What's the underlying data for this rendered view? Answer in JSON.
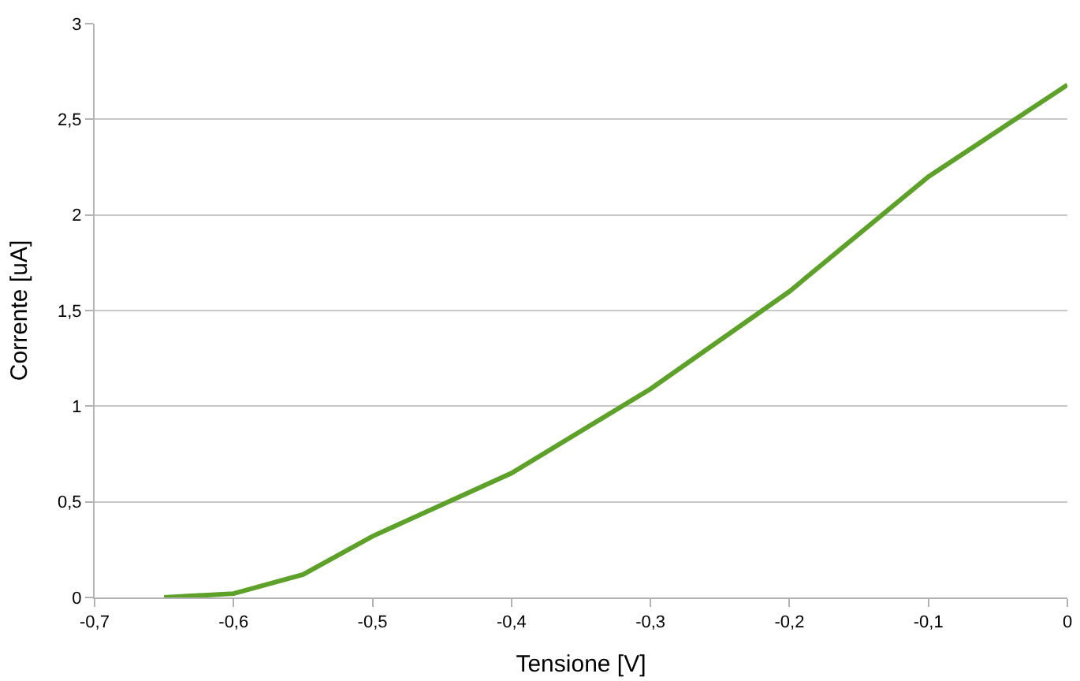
{
  "chart_data": {
    "type": "line",
    "xlabel": "Tensione [V]",
    "ylabel": "Corrente [uA]",
    "x": [
      -0.65,
      -0.6,
      -0.55,
      -0.5,
      -0.4,
      -0.3,
      -0.2,
      -0.1,
      0
    ],
    "series": [
      {
        "color": "#5ea12a",
        "values": [
          0.0,
          0.02,
          0.12,
          0.32,
          0.65,
          1.09,
          1.6,
          2.2,
          2.68
        ]
      }
    ],
    "xlim": [
      -0.7,
      0
    ],
    "ylim": [
      0,
      3
    ],
    "xticks": [
      {
        "value": -0.7,
        "label": "-0,7"
      },
      {
        "value": -0.6,
        "label": "-0,6"
      },
      {
        "value": -0.5,
        "label": "-0,5"
      },
      {
        "value": -0.4,
        "label": "-0,4"
      },
      {
        "value": -0.3,
        "label": "-0,3"
      },
      {
        "value": -0.2,
        "label": "-0,2"
      },
      {
        "value": -0.1,
        "label": "-0,1"
      },
      0
    ],
    "yticks": [
      0,
      {
        "value": 0.5,
        "label": "0,5"
      },
      1,
      {
        "value": 1.5,
        "label": "1,5"
      },
      2,
      {
        "value": 2.5,
        "label": "2,5"
      },
      3
    ],
    "grid": "y",
    "marker": "none",
    "line_style": "solid"
  }
}
